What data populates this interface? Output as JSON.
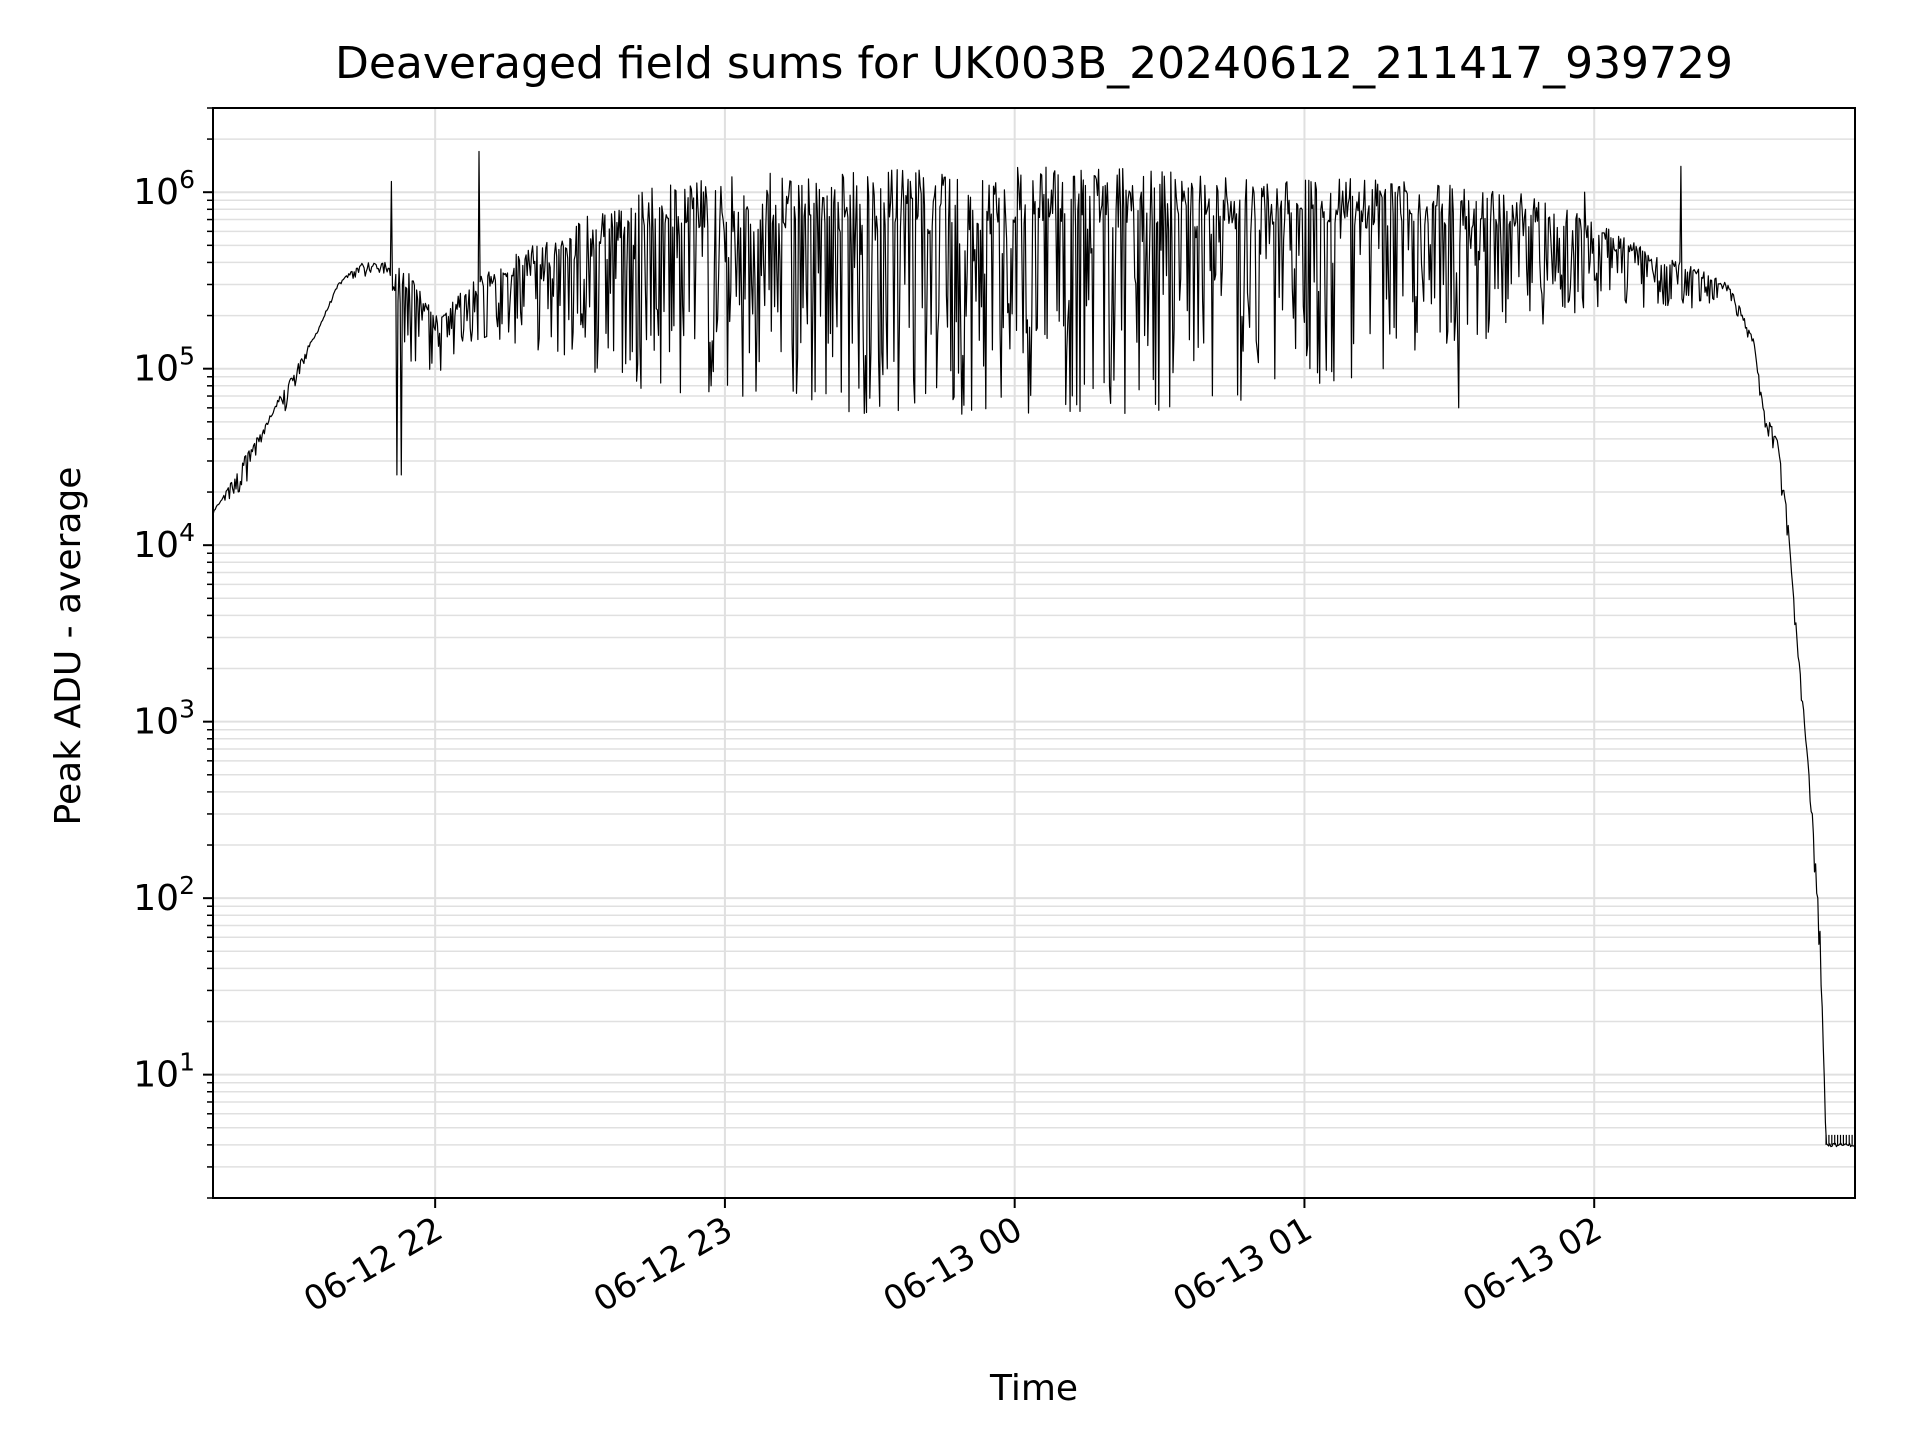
{
  "chart_data": {
    "type": "line",
    "title": "Deaveraged field sums for UK003B_20240612_211417_939729",
    "xlabel": "Time",
    "ylabel": "Peak ADU - average",
    "yscale": "log",
    "ylim": [
      2,
      3000000
    ],
    "xlim": [
      "2024-06-12 21:14",
      "2024-06-13 02:54"
    ],
    "grid": true,
    "line_color": "#000000",
    "grid_color": "#e0e0e0",
    "x_ticks": [
      {
        "value": "2024-06-12 22:00",
        "label": "06-12 22"
      },
      {
        "value": "2024-06-12 23:00",
        "label": "06-12 23"
      },
      {
        "value": "2024-06-13 00:00",
        "label": "06-13 00"
      },
      {
        "value": "2024-06-13 01:00",
        "label": "06-13 01"
      },
      {
        "value": "2024-06-13 02:00",
        "label": "06-13 02"
      }
    ],
    "y_ticks": [
      {
        "value": 10,
        "base": "10",
        "exp": "1"
      },
      {
        "value": 100,
        "base": "10",
        "exp": "2"
      },
      {
        "value": 1000,
        "base": "10",
        "exp": "3"
      },
      {
        "value": 10000,
        "base": "10",
        "exp": "4"
      },
      {
        "value": 100000,
        "base": "10",
        "exp": "5"
      },
      {
        "value": 1000000,
        "base": "10",
        "exp": "6"
      }
    ],
    "series": [
      {
        "style": "dense_fluctuating",
        "upper_envelope": [
          [
            "2024-06-12 21:14",
            15000
          ],
          [
            "2024-06-12 21:20",
            30000
          ],
          [
            "2024-06-12 21:25",
            50000
          ],
          [
            "2024-06-12 21:30",
            90000
          ],
          [
            "2024-06-12 21:35",
            150000
          ],
          [
            "2024-06-12 21:40",
            300000
          ],
          [
            "2024-06-12 21:45",
            400000
          ],
          [
            "2024-06-12 21:50",
            400000
          ],
          [
            "2024-06-12 21:55",
            350000
          ],
          [
            "2024-06-12 22:00",
            200000
          ],
          [
            "2024-06-12 22:10",
            350000
          ],
          [
            "2024-06-12 22:20",
            500000
          ],
          [
            "2024-06-12 22:30",
            700000
          ],
          [
            "2024-06-12 22:40",
            1000000
          ],
          [
            "2024-06-12 22:50",
            1150000
          ],
          [
            "2024-06-12 23:00",
            1250000
          ],
          [
            "2024-06-12 23:30",
            1350000
          ],
          [
            "2024-06-13 00:00",
            1400000
          ],
          [
            "2024-06-13 00:30",
            1350000
          ],
          [
            "2024-06-13 01:00",
            1250000
          ],
          [
            "2024-06-13 01:30",
            1100000
          ],
          [
            "2024-06-13 01:50",
            950000
          ],
          [
            "2024-06-13 02:00",
            700000
          ],
          [
            "2024-06-13 02:10",
            500000
          ],
          [
            "2024-06-13 02:20",
            400000
          ],
          [
            "2024-06-13 02:28",
            300000
          ],
          [
            "2024-06-13 02:33",
            150000
          ],
          [
            "2024-06-13 02:35",
            60000
          ],
          [
            "2024-06-13 02:38",
            40000
          ],
          [
            "2024-06-13 02:40",
            15000
          ],
          [
            "2024-06-13 02:42",
            3000
          ],
          [
            "2024-06-13 02:44",
            800
          ],
          [
            "2024-06-13 02:46",
            150
          ],
          [
            "2024-06-13 02:47",
            50
          ],
          [
            "2024-06-13 02:48",
            4
          ],
          [
            "2024-06-13 02:54",
            4
          ]
        ],
        "lower_envelope": [
          [
            "2024-06-12 21:14",
            15000
          ],
          [
            "2024-06-12 21:20",
            20000
          ],
          [
            "2024-06-12 21:25",
            40000
          ],
          [
            "2024-06-12 21:30",
            60000
          ],
          [
            "2024-06-12 21:35",
            150000
          ],
          [
            "2024-06-12 21:40",
            300000
          ],
          [
            "2024-06-12 21:45",
            330000
          ],
          [
            "2024-06-12 21:50",
            300000
          ],
          [
            "2024-06-12 21:55",
            100000
          ],
          [
            "2024-06-12 22:00",
            90000
          ],
          [
            "2024-06-12 22:10",
            150000
          ],
          [
            "2024-06-12 22:20",
            130000
          ],
          [
            "2024-06-12 22:30",
            100000
          ],
          [
            "2024-06-12 22:40",
            80000
          ],
          [
            "2024-06-12 22:50",
            70000
          ],
          [
            "2024-06-12 23:00",
            60000
          ],
          [
            "2024-06-12 23:30",
            55000
          ],
          [
            "2024-06-13 00:00",
            55000
          ],
          [
            "2024-06-13 00:30",
            55000
          ],
          [
            "2024-06-13 01:00",
            70000
          ],
          [
            "2024-06-13 01:30",
            130000
          ],
          [
            "2024-06-13 01:50",
            180000
          ],
          [
            "2024-06-13 02:00",
            200000
          ],
          [
            "2024-06-13 02:10",
            220000
          ],
          [
            "2024-06-13 02:20",
            220000
          ],
          [
            "2024-06-13 02:28",
            250000
          ],
          [
            "2024-06-13 02:33",
            120000
          ],
          [
            "2024-06-13 02:35",
            50000
          ],
          [
            "2024-06-13 02:38",
            30000
          ],
          [
            "2024-06-13 02:40",
            10000
          ],
          [
            "2024-06-13 02:42",
            2000
          ],
          [
            "2024-06-13 02:44",
            500
          ],
          [
            "2024-06-13 02:46",
            100
          ],
          [
            "2024-06-13 02:47",
            30
          ],
          [
            "2024-06-13 02:48",
            4
          ],
          [
            "2024-06-13 02:54",
            4
          ]
        ],
        "spikes": [
          [
            "2024-06-12 21:51",
            1150000
          ],
          [
            "2024-06-12 22:09",
            1700000
          ],
          [
            "2024-06-13 01:58",
            1000000
          ],
          [
            "2024-06-13 02:18",
            1400000
          ],
          [
            "2024-06-12 21:52",
            25000
          ],
          [
            "2024-06-12 21:53",
            25000
          ],
          [
            "2024-06-13 01:32",
            60000
          ]
        ]
      }
    ]
  }
}
